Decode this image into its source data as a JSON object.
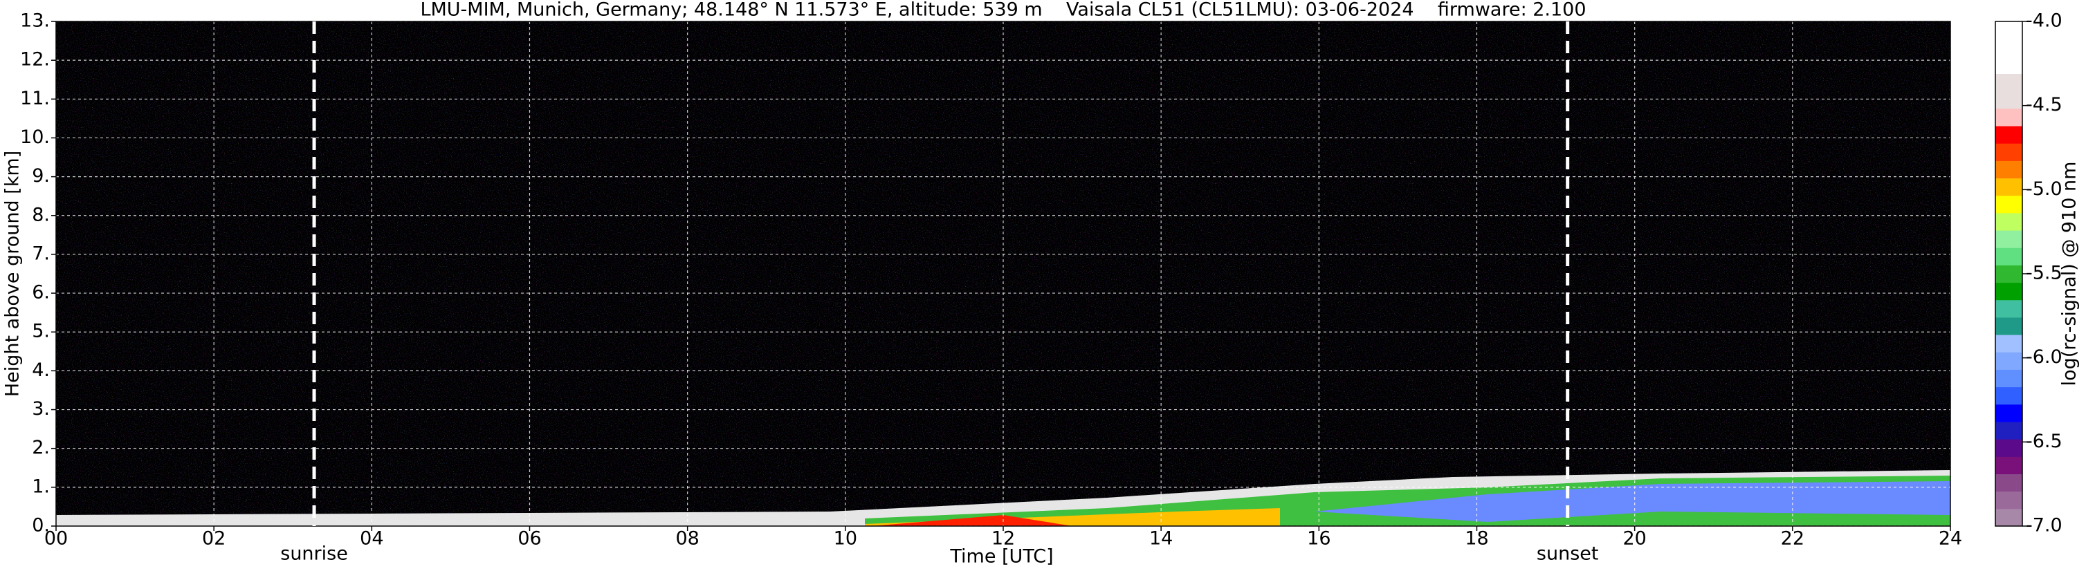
{
  "chart_data": {
    "type": "heatmap",
    "title": "LMU-MIM, Munich, Germany; 48.148° N 11.573° E, altitude: 539 m    Vaisala CL51 (CL51LMU): 03-06-2024    firmware: 2.100",
    "x_label": "Time [UTC]",
    "y_label": "Height above ground [km]",
    "xlim": [
      0,
      24
    ],
    "xticks": [
      {
        "value": 0,
        "label": "00"
      },
      {
        "value": 2,
        "label": "02"
      },
      {
        "value": 4,
        "label": "04"
      },
      {
        "value": 6,
        "label": "06"
      },
      {
        "value": 8,
        "label": "08"
      },
      10,
      12,
      14,
      16,
      18,
      20,
      22,
      24
    ],
    "ylim": [
      0,
      13
    ],
    "yticks": [
      {
        "value": 0,
        "label": "0."
      },
      {
        "value": 1,
        "label": "1."
      },
      {
        "value": 2,
        "label": "2."
      },
      {
        "value": 3,
        "label": "3."
      },
      {
        "value": 4,
        "label": "4."
      },
      {
        "value": 5,
        "label": "5."
      },
      {
        "value": 6,
        "label": "6."
      },
      {
        "value": 7,
        "label": "7."
      },
      {
        "value": 8,
        "label": "8."
      },
      {
        "value": 9,
        "label": "9."
      },
      {
        "value": 10,
        "label": "10."
      },
      {
        "value": 11,
        "label": "11."
      },
      {
        "value": 12,
        "label": "12."
      },
      {
        "value": 13,
        "label": "13."
      }
    ],
    "grid": true,
    "annotations": [
      {
        "text": "sunrise",
        "x": 3.27
      },
      {
        "text": "sunset",
        "x": 19.15
      }
    ],
    "colorbar": {
      "label": "log(rc-signal) @ 910 nm",
      "lim": [
        -7,
        -4
      ],
      "ticks": [
        {
          "value": -7,
          "label": "-7.0"
        },
        -6.5,
        {
          "value": -6,
          "label": "-6.0"
        },
        -5.5,
        {
          "value": -5,
          "label": "-5.0"
        },
        -4.5,
        {
          "value": -4,
          "label": "-4.0"
        }
      ],
      "colors": [
        "#a888a8",
        "#9a6a9a",
        "#8a4a8a",
        "#7a107a",
        "#5a0a8a",
        "#2020c0",
        "#0000ff",
        "#3060ff",
        "#6090ff",
        "#80a8ff",
        "#a0c0ff",
        "#209a88",
        "#40c0a0",
        "#00a000",
        "#30b830",
        "#60e080",
        "#90f0a0",
        "#c0ff60",
        "#ffff00",
        "#ffc000",
        "#ff8000",
        "#ff4000",
        "#ff0000",
        "#ffc0c0",
        "#e8dede",
        "#e8dede",
        "#ffffff",
        "#ffffff",
        "#ffffff"
      ]
    }
  }
}
